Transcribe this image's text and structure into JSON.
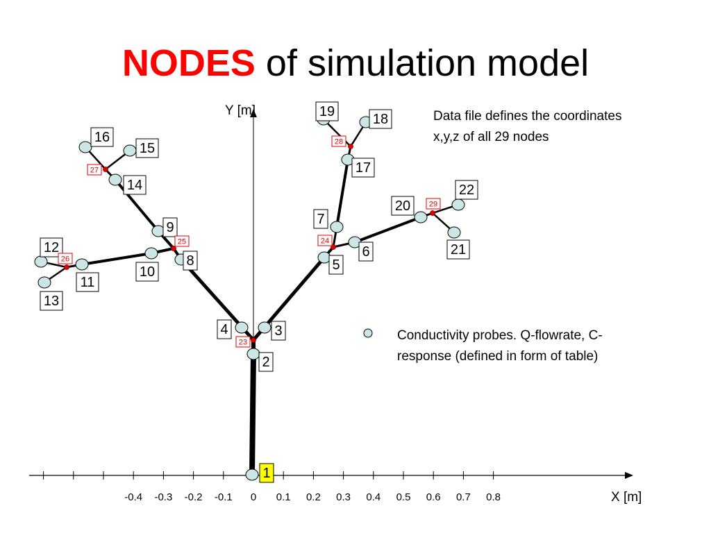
{
  "title": {
    "emphasis": "NODES",
    "rest": "of simulation model"
  },
  "axes": {
    "y_label": "Y [m]",
    "x_label": "X [m]",
    "x_ticks": [
      "-0.4",
      "-0.3",
      "-0.2",
      "-0.1",
      "0",
      "0.1",
      "0.2",
      "0.3",
      "0.4",
      "0.5",
      "0.6",
      "0.7",
      "0.8"
    ]
  },
  "nodes": [
    {
      "label": "1"
    },
    {
      "label": "2"
    },
    {
      "label": "3"
    },
    {
      "label": "4"
    },
    {
      "label": "5"
    },
    {
      "label": "6"
    },
    {
      "label": "7"
    },
    {
      "label": "8"
    },
    {
      "label": "9"
    },
    {
      "label": "10"
    },
    {
      "label": "11"
    },
    {
      "label": "12"
    },
    {
      "label": "13"
    },
    {
      "label": "14"
    },
    {
      "label": "15"
    },
    {
      "label": "16"
    },
    {
      "label": "17"
    },
    {
      "label": "18"
    },
    {
      "label": "19"
    },
    {
      "label": "20"
    },
    {
      "label": "21"
    },
    {
      "label": "22"
    },
    {
      "label": "23"
    },
    {
      "label": "24"
    },
    {
      "label": "25"
    },
    {
      "label": "26"
    },
    {
      "label": "27"
    },
    {
      "label": "28"
    },
    {
      "label": "29"
    }
  ],
  "note": [
    "Data file defines the  coordinates",
    "x,y,z of all 29 nodes"
  ],
  "legend": [
    "Conductivity probes. Q-flowrate, C-",
    "response (defined in form of table)"
  ]
}
